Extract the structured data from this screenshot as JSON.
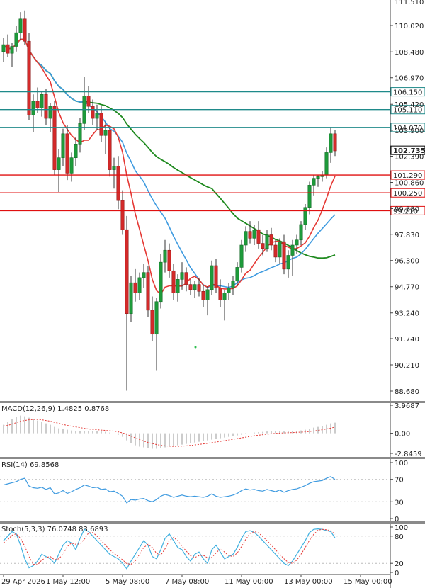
{
  "colors": {
    "bull": "#1e9b3b",
    "bear": "#d42a2a",
    "wick": "#333333",
    "resistance": "#1f8a8a",
    "support": "#e01010",
    "ma_fast": "#e53935",
    "ma_slow": "#3f9be0",
    "ma_long": "#1f8a1f",
    "macd_signal": "#e53935",
    "macd_hist": "#999999",
    "rsi": "#3f9be0",
    "stoch_k": "#3fb0e0",
    "stoch_d": "#e53935"
  },
  "chart_data": {
    "type": "candlestick",
    "price_axis": {
      "ticks": [
        110.02,
        108.48,
        106.97,
        105.42,
        103.9,
        102.39,
        100.86,
        99.33,
        97.83,
        96.3,
        94.77,
        93.24,
        91.74,
        90.21,
        88.68
      ],
      "tick_labels": [
        "110.020",
        "108.480",
        "106.970",
        "105.420",
        "103.900",
        "102.390",
        "100.860",
        "99.330",
        "97.830",
        "96.300",
        "94.770",
        "93.240",
        "91.740",
        "90.210",
        "88.680"
      ],
      "top_label": "111.510",
      "range": [
        87.7,
        111.6
      ]
    },
    "x_labels": [
      "29 Apr 2026",
      "1 May 12:00",
      "5 May 08:00",
      "7 May 08:00",
      "11 May 00:00",
      "13 May 00:00",
      "15 May 00:00"
    ],
    "x_label_index": [
      0,
      14,
      28,
      42,
      56,
      70,
      84
    ],
    "current_price": {
      "value": 102.735,
      "label": "102.735"
    },
    "resistance_levels": [
      {
        "value": 106.15,
        "label": "106.150"
      },
      {
        "value": 105.11,
        "label": "105.110"
      },
      {
        "value": 104.07,
        "label": "104.070"
      }
    ],
    "support_levels": [
      {
        "value": 101.29,
        "label": "101.290"
      },
      {
        "value": 100.25,
        "label": "100.250"
      },
      {
        "value": 99.21,
        "label": "99.210"
      }
    ],
    "candles": [
      [
        108.5,
        109.3,
        107.9,
        108.9
      ],
      [
        108.9,
        109.5,
        108.2,
        108.4
      ],
      [
        108.4,
        109.0,
        107.6,
        108.8
      ],
      [
        108.8,
        110.0,
        108.5,
        109.6
      ],
      [
        109.6,
        110.8,
        109.2,
        110.4
      ],
      [
        110.4,
        110.9,
        108.9,
        109.1
      ],
      [
        109.1,
        109.6,
        104.5,
        104.8
      ],
      [
        104.8,
        106.0,
        103.8,
        105.6
      ],
      [
        105.6,
        106.4,
        104.9,
        105.2
      ],
      [
        105.2,
        106.2,
        104.7,
        106.0
      ],
      [
        106.0,
        106.3,
        104.2,
        104.6
      ],
      [
        104.6,
        105.5,
        103.8,
        105.3
      ],
      [
        105.3,
        105.6,
        101.3,
        101.6
      ],
      [
        101.6,
        102.8,
        100.3,
        102.3
      ],
      [
        102.3,
        104.0,
        101.8,
        103.7
      ],
      [
        103.7,
        104.2,
        101.0,
        101.4
      ],
      [
        101.4,
        102.6,
        100.9,
        102.3
      ],
      [
        102.3,
        103.5,
        101.8,
        103.1
      ],
      [
        103.1,
        104.6,
        102.6,
        104.3
      ],
      [
        104.3,
        107.0,
        103.9,
        105.9
      ],
      [
        105.9,
        106.5,
        104.9,
        105.3
      ],
      [
        105.3,
        105.7,
        104.2,
        104.6
      ],
      [
        104.6,
        105.4,
        103.9,
        104.9
      ],
      [
        104.9,
        105.3,
        103.2,
        103.6
      ],
      [
        103.6,
        104.4,
        102.5,
        103.9
      ],
      [
        103.9,
        104.1,
        101.2,
        101.6
      ],
      [
        101.6,
        102.3,
        100.5,
        101.8
      ],
      [
        101.8,
        102.4,
        99.3,
        99.8
      ],
      [
        99.8,
        100.4,
        97.8,
        98.1
      ],
      [
        98.1,
        98.9,
        88.7,
        93.2
      ],
      [
        93.2,
        95.4,
        92.7,
        95.0
      ],
      [
        95.0,
        95.8,
        93.9,
        94.4
      ],
      [
        94.4,
        95.6,
        94.0,
        95.3
      ],
      [
        95.3,
        96.1,
        94.7,
        95.6
      ],
      [
        95.6,
        96.0,
        93.0,
        93.4
      ],
      [
        93.4,
        94.2,
        91.6,
        92.0
      ],
      [
        92.0,
        94.1,
        89.9,
        93.9
      ],
      [
        93.9,
        96.7,
        93.5,
        96.2
      ],
      [
        96.2,
        97.5,
        95.6,
        96.9
      ],
      [
        96.9,
        97.3,
        95.3,
        95.7
      ],
      [
        95.7,
        96.1,
        94.0,
        94.4
      ],
      [
        94.4,
        95.5,
        93.9,
        95.2
      ],
      [
        95.2,
        96.2,
        94.6,
        95.6
      ],
      [
        95.6,
        95.9,
        94.5,
        94.9
      ],
      [
        94.9,
        95.2,
        94.3,
        94.6
      ],
      [
        94.6,
        95.1,
        94.1,
        94.9
      ],
      [
        94.9,
        95.3,
        94.2,
        94.5
      ],
      [
        94.5,
        94.9,
        93.6,
        94.0
      ],
      [
        94.0,
        94.8,
        93.1,
        94.6
      ],
      [
        94.6,
        96.3,
        94.3,
        96.0
      ],
      [
        96.0,
        96.4,
        94.4,
        94.7
      ],
      [
        94.7,
        95.2,
        93.6,
        94.0
      ],
      [
        94.0,
        94.6,
        92.8,
        94.4
      ],
      [
        94.4,
        95.0,
        94.0,
        94.7
      ],
      [
        94.7,
        95.4,
        94.3,
        95.1
      ],
      [
        95.1,
        96.2,
        94.8,
        95.9
      ],
      [
        95.9,
        97.5,
        95.6,
        97.2
      ],
      [
        97.2,
        98.3,
        96.8,
        98.0
      ],
      [
        98.0,
        98.6,
        97.3,
        97.6
      ],
      [
        97.6,
        98.4,
        97.2,
        98.1
      ],
      [
        98.1,
        98.6,
        97.0,
        97.3
      ],
      [
        97.3,
        97.8,
        96.6,
        97.0
      ],
      [
        97.0,
        98.1,
        96.8,
        97.8
      ],
      [
        97.8,
        98.2,
        96.9,
        97.2
      ],
      [
        97.2,
        97.5,
        96.2,
        96.5
      ],
      [
        96.5,
        97.6,
        96.1,
        97.4
      ],
      [
        97.4,
        97.8,
        95.5,
        95.8
      ],
      [
        95.8,
        96.9,
        95.3,
        96.6
      ],
      [
        96.6,
        97.5,
        95.4,
        97.2
      ],
      [
        97.2,
        97.8,
        96.7,
        97.5
      ],
      [
        97.5,
        98.6,
        97.2,
        98.4
      ],
      [
        98.4,
        99.6,
        98.1,
        99.4
      ],
      [
        99.4,
        100.9,
        99.0,
        100.7
      ],
      [
        100.7,
        101.3,
        100.1,
        101.1
      ],
      [
        101.1,
        101.3,
        100.6,
        101.2
      ],
      [
        101.2,
        101.5,
        100.9,
        101.3
      ],
      [
        101.3,
        102.9,
        101.1,
        102.6
      ],
      [
        102.6,
        104.1,
        102.0,
        103.7
      ],
      [
        103.7,
        103.9,
        102.4,
        102.7
      ]
    ],
    "ma_fast_label": "",
    "macd": {
      "label": "MACD(12,26,9) 1.4825 0.8768",
      "axis_labels": [
        "3.9687",
        "0.00",
        "-2.8459"
      ],
      "range": [
        -2.8459,
        3.9687
      ],
      "hist": [
        1.2,
        1.6,
        2.0,
        2.3,
        2.5,
        2.4,
        2.2,
        2.0,
        1.8,
        1.6,
        1.4,
        1.2,
        0.9,
        0.7,
        0.6,
        0.5,
        0.4,
        0.35,
        0.3,
        0.3,
        0.35,
        0.35,
        0.3,
        0.25,
        0.2,
        0.1,
        0.0,
        -0.2,
        -0.5,
        -1.0,
        -1.4,
        -1.7,
        -1.9,
        -2.0,
        -2.1,
        -2.2,
        -2.2,
        -2.1,
        -2.0,
        -1.9,
        -1.8,
        -1.7,
        -1.6,
        -1.5,
        -1.4,
        -1.3,
        -1.2,
        -1.1,
        -1.0,
        -0.9,
        -0.8,
        -0.7,
        -0.6,
        -0.5,
        -0.4,
        -0.3,
        -0.2,
        -0.1,
        0.0,
        0.1,
        0.15,
        0.2,
        0.25,
        0.3,
        0.3,
        0.3,
        0.25,
        0.25,
        0.3,
        0.35,
        0.4,
        0.5,
        0.6,
        0.8,
        0.9,
        1.0,
        1.2,
        1.4,
        1.5
      ],
      "signal": [
        1.0,
        1.1,
        1.3,
        1.5,
        1.7,
        1.8,
        1.9,
        1.95,
        1.95,
        1.9,
        1.8,
        1.7,
        1.55,
        1.4,
        1.25,
        1.1,
        1.0,
        0.9,
        0.8,
        0.7,
        0.6,
        0.55,
        0.5,
        0.45,
        0.4,
        0.35,
        0.3,
        0.2,
        0.05,
        -0.15,
        -0.4,
        -0.65,
        -0.9,
        -1.1,
        -1.3,
        -1.45,
        -1.6,
        -1.7,
        -1.78,
        -1.82,
        -1.85,
        -1.85,
        -1.82,
        -1.78,
        -1.72,
        -1.65,
        -1.58,
        -1.5,
        -1.42,
        -1.33,
        -1.24,
        -1.15,
        -1.05,
        -0.95,
        -0.85,
        -0.75,
        -0.65,
        -0.55,
        -0.45,
        -0.35,
        -0.27,
        -0.2,
        -0.13,
        -0.07,
        -0.02,
        0.02,
        0.05,
        0.08,
        0.1,
        0.13,
        0.16,
        0.2,
        0.25,
        0.32,
        0.4,
        0.5,
        0.6,
        0.72,
        0.88
      ]
    },
    "rsi": {
      "label": "RSI(14) 69.8568",
      "axis_labels": [
        "100",
        "70",
        "30",
        "0"
      ],
      "range": [
        0,
        100
      ],
      "levels": [
        70,
        30
      ],
      "values": [
        60,
        62,
        64,
        66,
        70,
        72,
        58,
        55,
        54,
        56,
        52,
        55,
        44,
        46,
        50,
        45,
        48,
        52,
        55,
        60,
        58,
        55,
        56,
        52,
        53,
        48,
        49,
        45,
        40,
        28,
        34,
        33,
        35,
        36,
        32,
        30,
        34,
        40,
        43,
        41,
        38,
        40,
        42,
        40,
        39,
        40,
        39,
        38,
        40,
        44,
        40,
        38,
        39,
        40,
        42,
        45,
        50,
        53,
        51,
        52,
        50,
        49,
        52,
        50,
        48,
        51,
        47,
        50,
        52,
        53,
        56,
        59,
        63,
        66,
        67,
        68,
        72,
        75,
        70
      ]
    },
    "stoch": {
      "label": "Stoch(5,3,3) 76.0748 83.6893",
      "axis_labels": [
        "100",
        "80",
        "20",
        "0"
      ],
      "range": [
        0,
        100
      ],
      "levels": [
        80,
        20
      ],
      "k": [
        70,
        80,
        90,
        85,
        60,
        30,
        10,
        15,
        25,
        40,
        35,
        30,
        20,
        40,
        60,
        70,
        65,
        50,
        75,
        95,
        90,
        80,
        70,
        60,
        50,
        40,
        35,
        30,
        20,
        8,
        25,
        40,
        55,
        70,
        60,
        35,
        30,
        50,
        75,
        85,
        70,
        55,
        50,
        35,
        25,
        40,
        45,
        30,
        20,
        50,
        60,
        45,
        30,
        35,
        40,
        55,
        75,
        90,
        92,
        88,
        80,
        70,
        60,
        50,
        40,
        30,
        20,
        15,
        25,
        40,
        55,
        70,
        88,
        95,
        96,
        95,
        92,
        90,
        76
      ],
      "d": [
        65,
        72,
        82,
        85,
        75,
        58,
        35,
        18,
        17,
        27,
        33,
        35,
        28,
        30,
        40,
        57,
        65,
        62,
        63,
        73,
        87,
        88,
        80,
        70,
        60,
        50,
        42,
        35,
        28,
        19,
        18,
        25,
        40,
        55,
        62,
        55,
        42,
        38,
        52,
        70,
        77,
        70,
        58,
        47,
        37,
        33,
        37,
        38,
        32,
        33,
        43,
        52,
        45,
        37,
        35,
        43,
        57,
        73,
        86,
        90,
        87,
        79,
        70,
        60,
        50,
        40,
        30,
        22,
        20,
        27,
        40,
        55,
        71,
        84,
        93,
        95,
        94,
        92,
        84
      ]
    }
  }
}
